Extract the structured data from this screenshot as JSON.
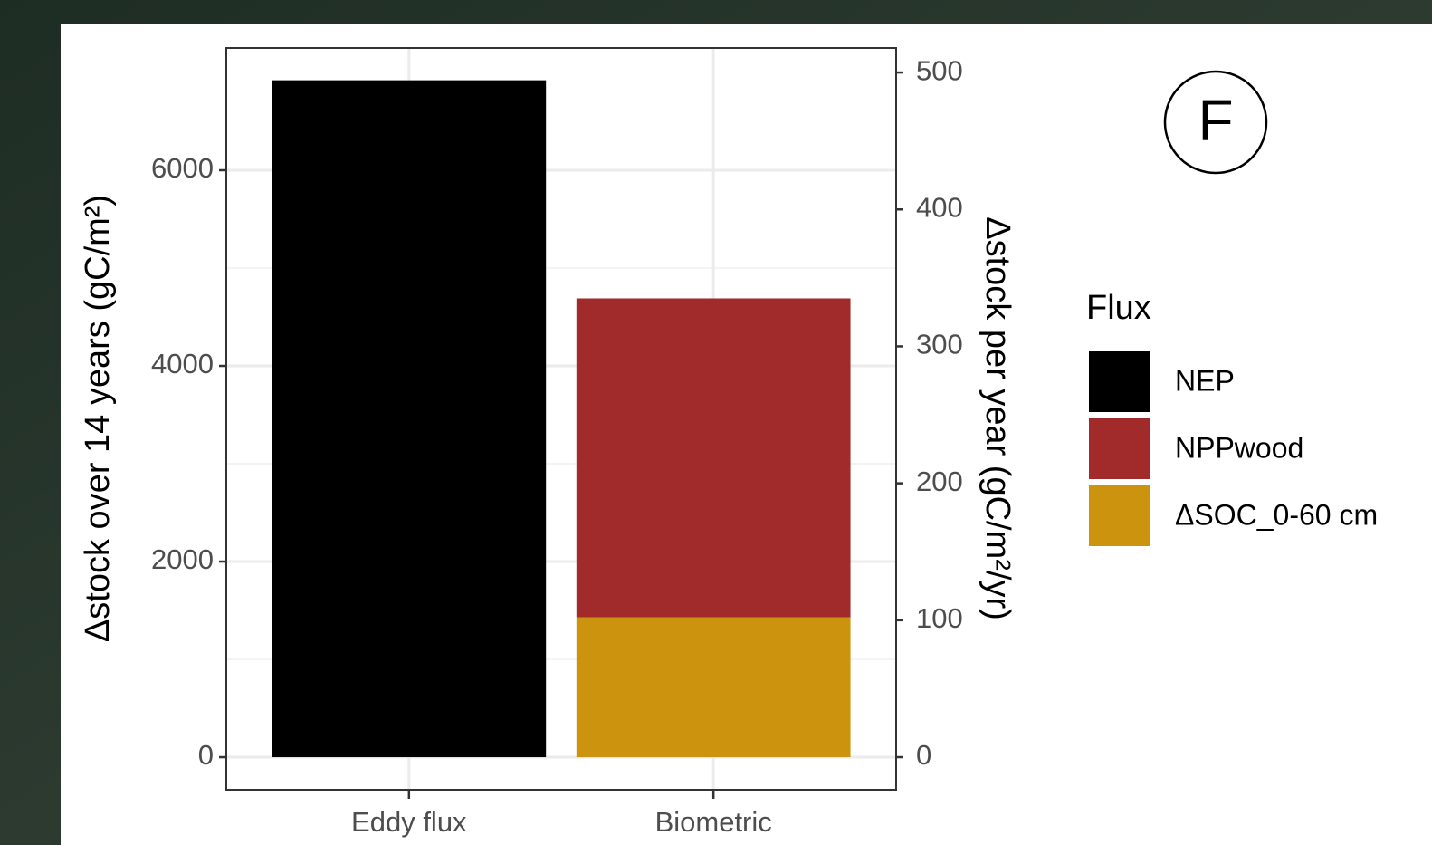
{
  "chart_data": {
    "type": "bar",
    "stacked": true,
    "categories": [
      "Eddy flux",
      "Biometric"
    ],
    "series": [
      {
        "name": "NEP",
        "color": "#000000",
        "values": [
          6920,
          null
        ]
      },
      {
        "name": "NPPwood",
        "color": "#a12a2b",
        "values": [
          null,
          3260
        ]
      },
      {
        "name": "ΔSOC_0-60 cm",
        "color": "#cc930e",
        "values": [
          null,
          1430
        ]
      }
    ],
    "ylabel": "Δstock over 14 years (gC/m²)",
    "y2label": "Δstock per year (gC/m²/yr)",
    "ylim": [
      -333,
      7250
    ],
    "yticks": [
      0,
      2000,
      4000,
      6000
    ],
    "yticks_minor": [
      1000,
      3000,
      5000
    ],
    "y2lim": [
      -23.8,
      517.9
    ],
    "y2ticks": [
      0,
      100,
      200,
      300,
      400,
      500
    ],
    "legend_title": "Flux",
    "legend": "right",
    "grid": true,
    "annotation": "F"
  }
}
